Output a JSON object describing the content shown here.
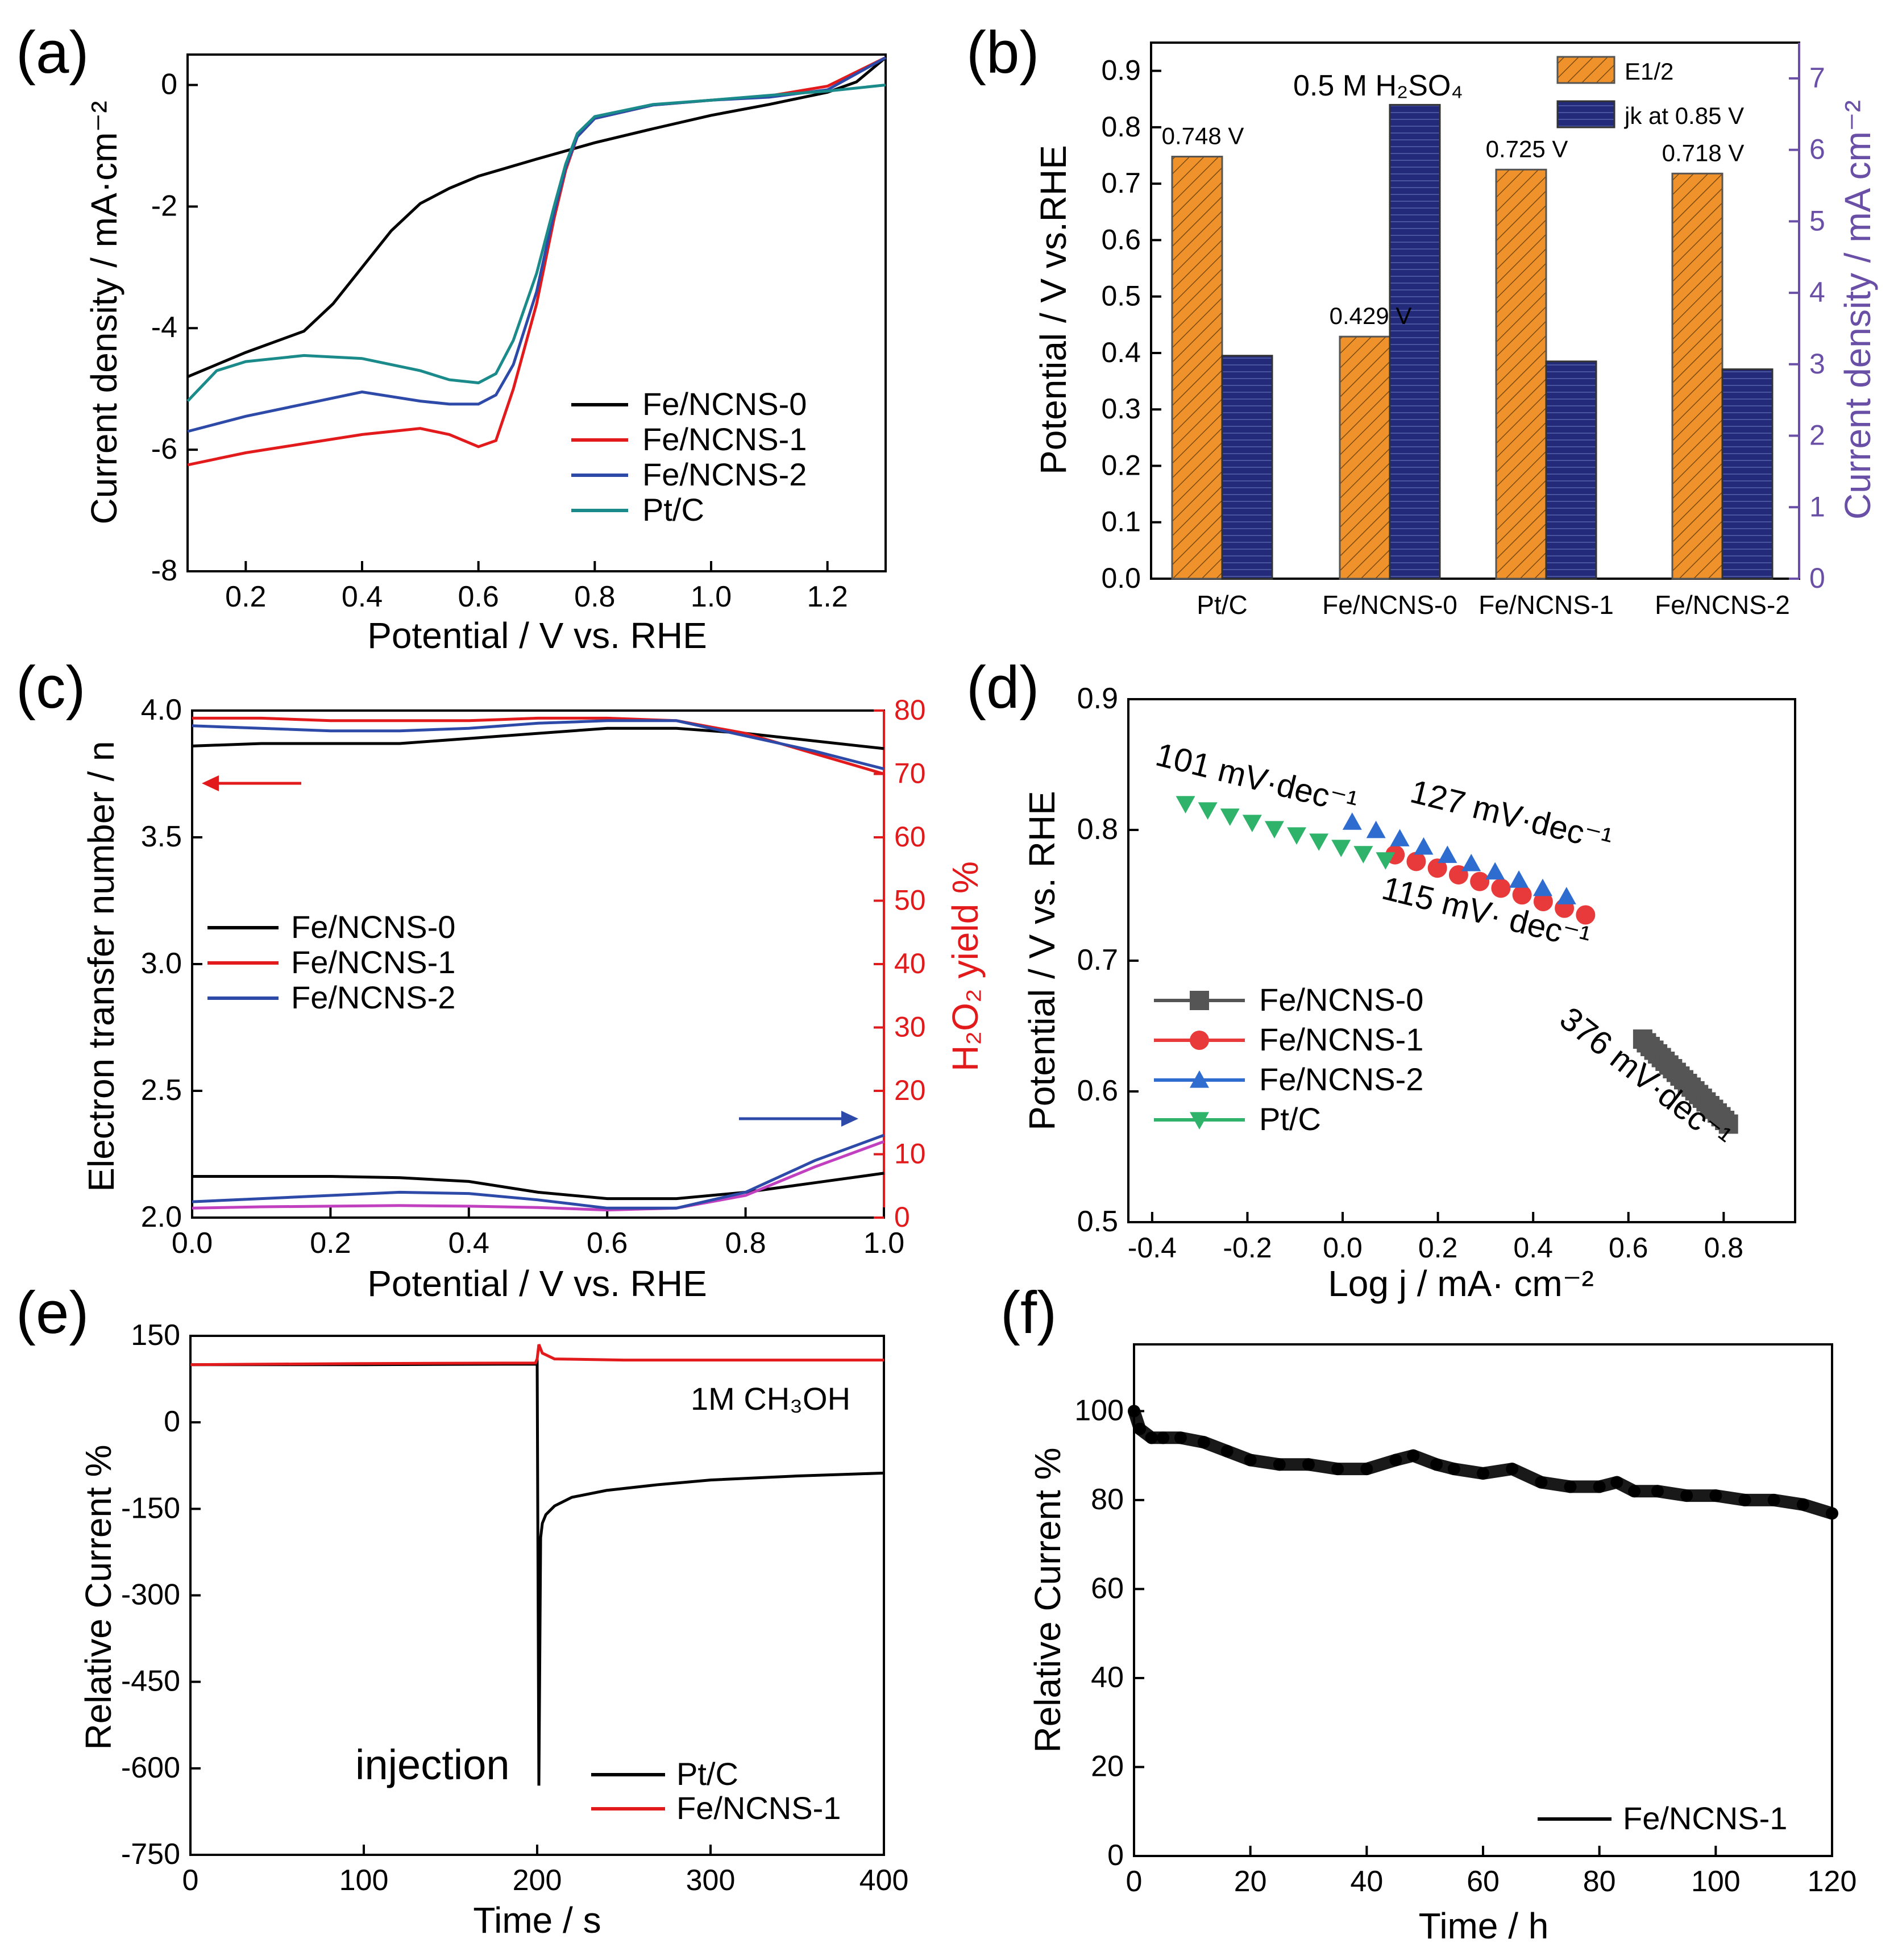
{
  "chart_data": [
    {
      "panel": "(a)",
      "type": "line",
      "xlabel": "Potential / V vs. RHE",
      "ylabel": "Current density / mA·cm⁻²",
      "xlim": [
        0.1,
        1.3
      ],
      "ylim": [
        -8,
        0.5
      ],
      "xticks": [
        "0.2",
        "0.4",
        "0.6",
        "0.8",
        "1.0",
        "1.2"
      ],
      "yticks": [
        "0",
        "-2",
        "-4",
        "-6",
        "-8"
      ],
      "legend_position": "bottom-right",
      "series": [
        {
          "name": "Fe/NCNS-0",
          "color": "#000000",
          "x": [
            0.1,
            0.2,
            0.3,
            0.35,
            0.4,
            0.45,
            0.5,
            0.55,
            0.6,
            0.7,
            0.8,
            0.9,
            1.0,
            1.1,
            1.2,
            1.25,
            1.3
          ],
          "y": [
            -4.8,
            -4.4,
            -4.05,
            -3.6,
            -3.0,
            -2.4,
            -1.95,
            -1.7,
            -1.5,
            -1.22,
            -0.95,
            -0.72,
            -0.5,
            -0.32,
            -0.12,
            0.05,
            0.45
          ]
        },
        {
          "name": "Fe/NCNS-1",
          "color": "#e31a1c",
          "x": [
            0.1,
            0.2,
            0.3,
            0.4,
            0.5,
            0.55,
            0.6,
            0.63,
            0.66,
            0.7,
            0.73,
            0.75,
            0.77,
            0.8,
            0.9,
            1.0,
            1.1,
            1.2,
            1.3
          ],
          "y": [
            -6.25,
            -6.05,
            -5.9,
            -5.75,
            -5.65,
            -5.75,
            -5.95,
            -5.85,
            -5.0,
            -3.6,
            -2.2,
            -1.4,
            -0.85,
            -0.55,
            -0.33,
            -0.25,
            -0.18,
            -0.02,
            0.45
          ]
        },
        {
          "name": "Fe/NCNS-2",
          "color": "#2e4aa8",
          "x": [
            0.1,
            0.2,
            0.3,
            0.4,
            0.5,
            0.55,
            0.6,
            0.63,
            0.66,
            0.7,
            0.73,
            0.75,
            0.77,
            0.8,
            0.9,
            1.0,
            1.1,
            1.2,
            1.3
          ],
          "y": [
            -5.7,
            -5.45,
            -5.25,
            -5.05,
            -5.2,
            -5.25,
            -5.25,
            -5.1,
            -4.6,
            -3.4,
            -2.1,
            -1.35,
            -0.85,
            -0.55,
            -0.33,
            -0.25,
            -0.2,
            -0.08,
            0.45
          ]
        },
        {
          "name": "Pt/C",
          "color": "#1a8a8a",
          "x": [
            0.1,
            0.15,
            0.2,
            0.3,
            0.4,
            0.5,
            0.55,
            0.6,
            0.63,
            0.66,
            0.7,
            0.73,
            0.75,
            0.77,
            0.8,
            0.9,
            1.0,
            1.1,
            1.2,
            1.3
          ],
          "y": [
            -5.2,
            -4.7,
            -4.55,
            -4.45,
            -4.5,
            -4.7,
            -4.85,
            -4.9,
            -4.75,
            -4.2,
            -3.1,
            -2.0,
            -1.3,
            -0.8,
            -0.52,
            -0.32,
            -0.25,
            -0.17,
            -0.1,
            0.0
          ]
        }
      ]
    },
    {
      "panel": "(b)",
      "type": "bar",
      "ylabel": "Potential / V vs.RHE",
      "ylabel2": "Current density / mA cm⁻²",
      "annotation": "0.5 M H₂SO₄",
      "categories": [
        "Pt/C",
        "Fe/NCNS-0",
        "Fe/NCNS-1",
        "Fe/NCNS-2"
      ],
      "ylim": [
        0,
        0.95
      ],
      "ylim2": [
        0,
        7.5
      ],
      "yticks": [
        "0.0",
        "0.1",
        "0.2",
        "0.3",
        "0.4",
        "0.5",
        "0.6",
        "0.7",
        "0.8",
        "0.9"
      ],
      "yticks2": [
        "0",
        "1",
        "2",
        "3",
        "4",
        "5",
        "6",
        "7"
      ],
      "legend_position": "top-right",
      "series": [
        {
          "name": "E1/2",
          "axis": "left",
          "color": "#f0922b",
          "values": [
            0.748,
            0.429,
            0.725,
            0.718
          ],
          "labels": [
            "0.748 V",
            "0.429 V",
            "0.725 V",
            "0.718 V"
          ]
        },
        {
          "name": "jk at 0.85 V",
          "axis": "right",
          "color": "#232a7a",
          "values": [
            3.12,
            6.63,
            3.04,
            2.93
          ]
        }
      ]
    },
    {
      "panel": "(c)",
      "type": "line",
      "xlabel": "Potential / V vs. RHE",
      "ylabel": "Electron transfer number / n",
      "ylabel2": "H₂O₂ yield %",
      "xlim": [
        0.0,
        1.0
      ],
      "ylim": [
        2.0,
        4.0
      ],
      "ylim2": [
        0,
        80
      ],
      "xticks": [
        "0.0",
        "0.2",
        "0.4",
        "0.6",
        "0.8",
        "1.0"
      ],
      "yticks": [
        "2.0",
        "2.5",
        "3.0",
        "3.5",
        "4.0"
      ],
      "yticks2": [
        "0",
        "10",
        "20",
        "30",
        "40",
        "50",
        "60",
        "70",
        "80"
      ],
      "legend_position": "center-left",
      "series": [
        {
          "name": "Fe/NCNS-0",
          "axis": "left",
          "color": "#000000",
          "x": [
            0,
            0.1,
            0.2,
            0.3,
            0.4,
            0.5,
            0.6,
            0.7,
            0.8,
            0.9,
            1.0
          ],
          "y": [
            3.86,
            3.87,
            3.87,
            3.87,
            3.89,
            3.91,
            3.93,
            3.93,
            3.91,
            3.88,
            3.85
          ]
        },
        {
          "name": "Fe/NCNS-1",
          "axis": "left",
          "color": "#e31a1c",
          "x": [
            0,
            0.1,
            0.2,
            0.3,
            0.4,
            0.5,
            0.6,
            0.7,
            0.8,
            0.9,
            1.0
          ],
          "y": [
            3.97,
            3.97,
            3.96,
            3.96,
            3.96,
            3.97,
            3.97,
            3.96,
            3.91,
            3.83,
            3.75
          ]
        },
        {
          "name": "Fe/NCNS-2",
          "axis": "left",
          "color": "#2e4aa8",
          "x": [
            0,
            0.1,
            0.2,
            0.3,
            0.4,
            0.5,
            0.6,
            0.7,
            0.8,
            0.9,
            1.0
          ],
          "y": [
            3.94,
            3.93,
            3.92,
            3.92,
            3.93,
            3.95,
            3.96,
            3.96,
            3.9,
            3.84,
            3.77
          ]
        },
        {
          "name": "Fe/NCNS-0 H2O2",
          "axis": "right",
          "color": "#000000",
          "x": [
            0,
            0.1,
            0.2,
            0.3,
            0.4,
            0.5,
            0.6,
            0.7,
            0.8,
            0.9,
            1.0
          ],
          "y": [
            6.5,
            6.5,
            6.5,
            6.3,
            5.7,
            4.0,
            3.0,
            3.0,
            4.0,
            5.5,
            7.0
          ]
        },
        {
          "name": "Fe/NCNS-1 H2O2",
          "axis": "right",
          "color": "#c040c0",
          "x": [
            0,
            0.1,
            0.2,
            0.3,
            0.4,
            0.5,
            0.6,
            0.7,
            0.8,
            0.9,
            1.0
          ],
          "y": [
            1.5,
            1.7,
            1.8,
            1.9,
            1.8,
            1.6,
            1.2,
            1.5,
            3.5,
            8.0,
            12.0
          ]
        },
        {
          "name": "Fe/NCNS-2 H2O2",
          "axis": "right",
          "color": "#2e4aa8",
          "x": [
            0,
            0.1,
            0.2,
            0.3,
            0.4,
            0.5,
            0.6,
            0.7,
            0.8,
            0.9,
            1.0
          ],
          "y": [
            2.5,
            3.0,
            3.5,
            4.0,
            3.8,
            2.8,
            1.5,
            1.5,
            4.0,
            9.0,
            13.0
          ]
        }
      ]
    },
    {
      "panel": "(d)",
      "type": "scatter",
      "xlabel": "Log j / mA· cm⁻²",
      "ylabel": "Potential / V vs. RHE",
      "xlim": [
        -0.45,
        0.95
      ],
      "ylim": [
        0.5,
        0.9
      ],
      "xticks": [
        "-0.4",
        "-0.2",
        "0.0",
        "0.2",
        "0.4",
        "0.6",
        "0.8"
      ],
      "yticks": [
        "0.5",
        "0.6",
        "0.7",
        "0.8",
        "0.9"
      ],
      "legend_position": "bottom-left",
      "annotations": [
        "101 mV·dec⁻¹",
        "127 mV·dec⁻¹",
        "115 mV· dec⁻¹",
        "376 mV·dec⁻¹"
      ],
      "series": [
        {
          "name": "Fe/NCNS-0",
          "color": "#555555",
          "marker": "square",
          "x_range": [
            0.63,
            0.81
          ],
          "y_range": [
            0.64,
            0.575
          ]
        },
        {
          "name": "Fe/NCNS-1",
          "color": "#e83a3a",
          "marker": "circle",
          "x_range": [
            0.11,
            0.51
          ],
          "y_range": [
            0.781,
            0.735
          ]
        },
        {
          "name": "Fe/NCNS-2",
          "color": "#2e6cd0",
          "marker": "triangle-up",
          "x_range": [
            0.02,
            0.47
          ],
          "y_range": [
            0.806,
            0.749
          ]
        },
        {
          "name": "Pt/C",
          "color": "#2fb36b",
          "marker": "triangle-down",
          "x_range": [
            -0.33,
            0.09
          ],
          "y_range": [
            0.82,
            0.777
          ]
        }
      ]
    },
    {
      "panel": "(e)",
      "type": "line",
      "xlabel": "Time / s",
      "ylabel": "Relative Current %",
      "xlim": [
        0,
        400
      ],
      "ylim": [
        -750,
        150
      ],
      "xticks": [
        "0",
        "100",
        "200",
        "300",
        "400"
      ],
      "yticks": [
        "150",
        "0",
        "-150",
        "-300",
        "-450",
        "-600",
        "-750"
      ],
      "annotations": [
        "1M CH₃OH",
        "injection"
      ],
      "legend_position": "bottom-right",
      "series": [
        {
          "name": "Pt/C",
          "color": "#000000",
          "x": [
            0,
            100,
            199,
            200,
            201,
            202,
            203,
            205,
            210,
            220,
            240,
            270,
            300,
            350,
            400
          ],
          "y": [
            100,
            100,
            101,
            105,
            -630,
            -200,
            -175,
            -160,
            -145,
            -130,
            -118,
            -108,
            -100,
            -93,
            -88
          ]
        },
        {
          "name": "Fe/NCNS-1",
          "color": "#e31a1c",
          "x": [
            0,
            100,
            199,
            200,
            201,
            203,
            210,
            250,
            300,
            400
          ],
          "y": [
            100,
            102,
            103,
            110,
            135,
            120,
            110,
            108,
            108,
            108
          ]
        }
      ]
    },
    {
      "panel": "(f)",
      "type": "scatter",
      "xlabel": "Time / h",
      "ylabel": "Relative Current %",
      "xlim": [
        0,
        120
      ],
      "ylim": [
        0,
        115
      ],
      "xticks": [
        "0",
        "20",
        "40",
        "60",
        "80",
        "100",
        "120"
      ],
      "yticks": [
        "0",
        "20",
        "40",
        "60",
        "80",
        "100"
      ],
      "legend_position": "bottom-right",
      "series": [
        {
          "name": "Fe/NCNS-1",
          "color": "#000000",
          "x": [
            0,
            1,
            3,
            5,
            8,
            12,
            16,
            20,
            25,
            30,
            35,
            40,
            45,
            48,
            52,
            55,
            60,
            65,
            70,
            75,
            80,
            83,
            86,
            90,
            95,
            100,
            105,
            110,
            115,
            120
          ],
          "y": [
            100,
            96,
            94,
            94,
            94,
            93,
            91,
            89,
            88,
            88,
            87,
            87,
            89,
            90,
            88,
            87,
            86,
            87,
            84,
            83,
            83,
            84,
            82,
            82,
            81,
            81,
            80,
            80,
            79,
            77
          ]
        }
      ]
    }
  ],
  "panel_labels": [
    "(a)",
    "(b)",
    "(c)",
    "(d)",
    "(e)",
    "(f)"
  ]
}
